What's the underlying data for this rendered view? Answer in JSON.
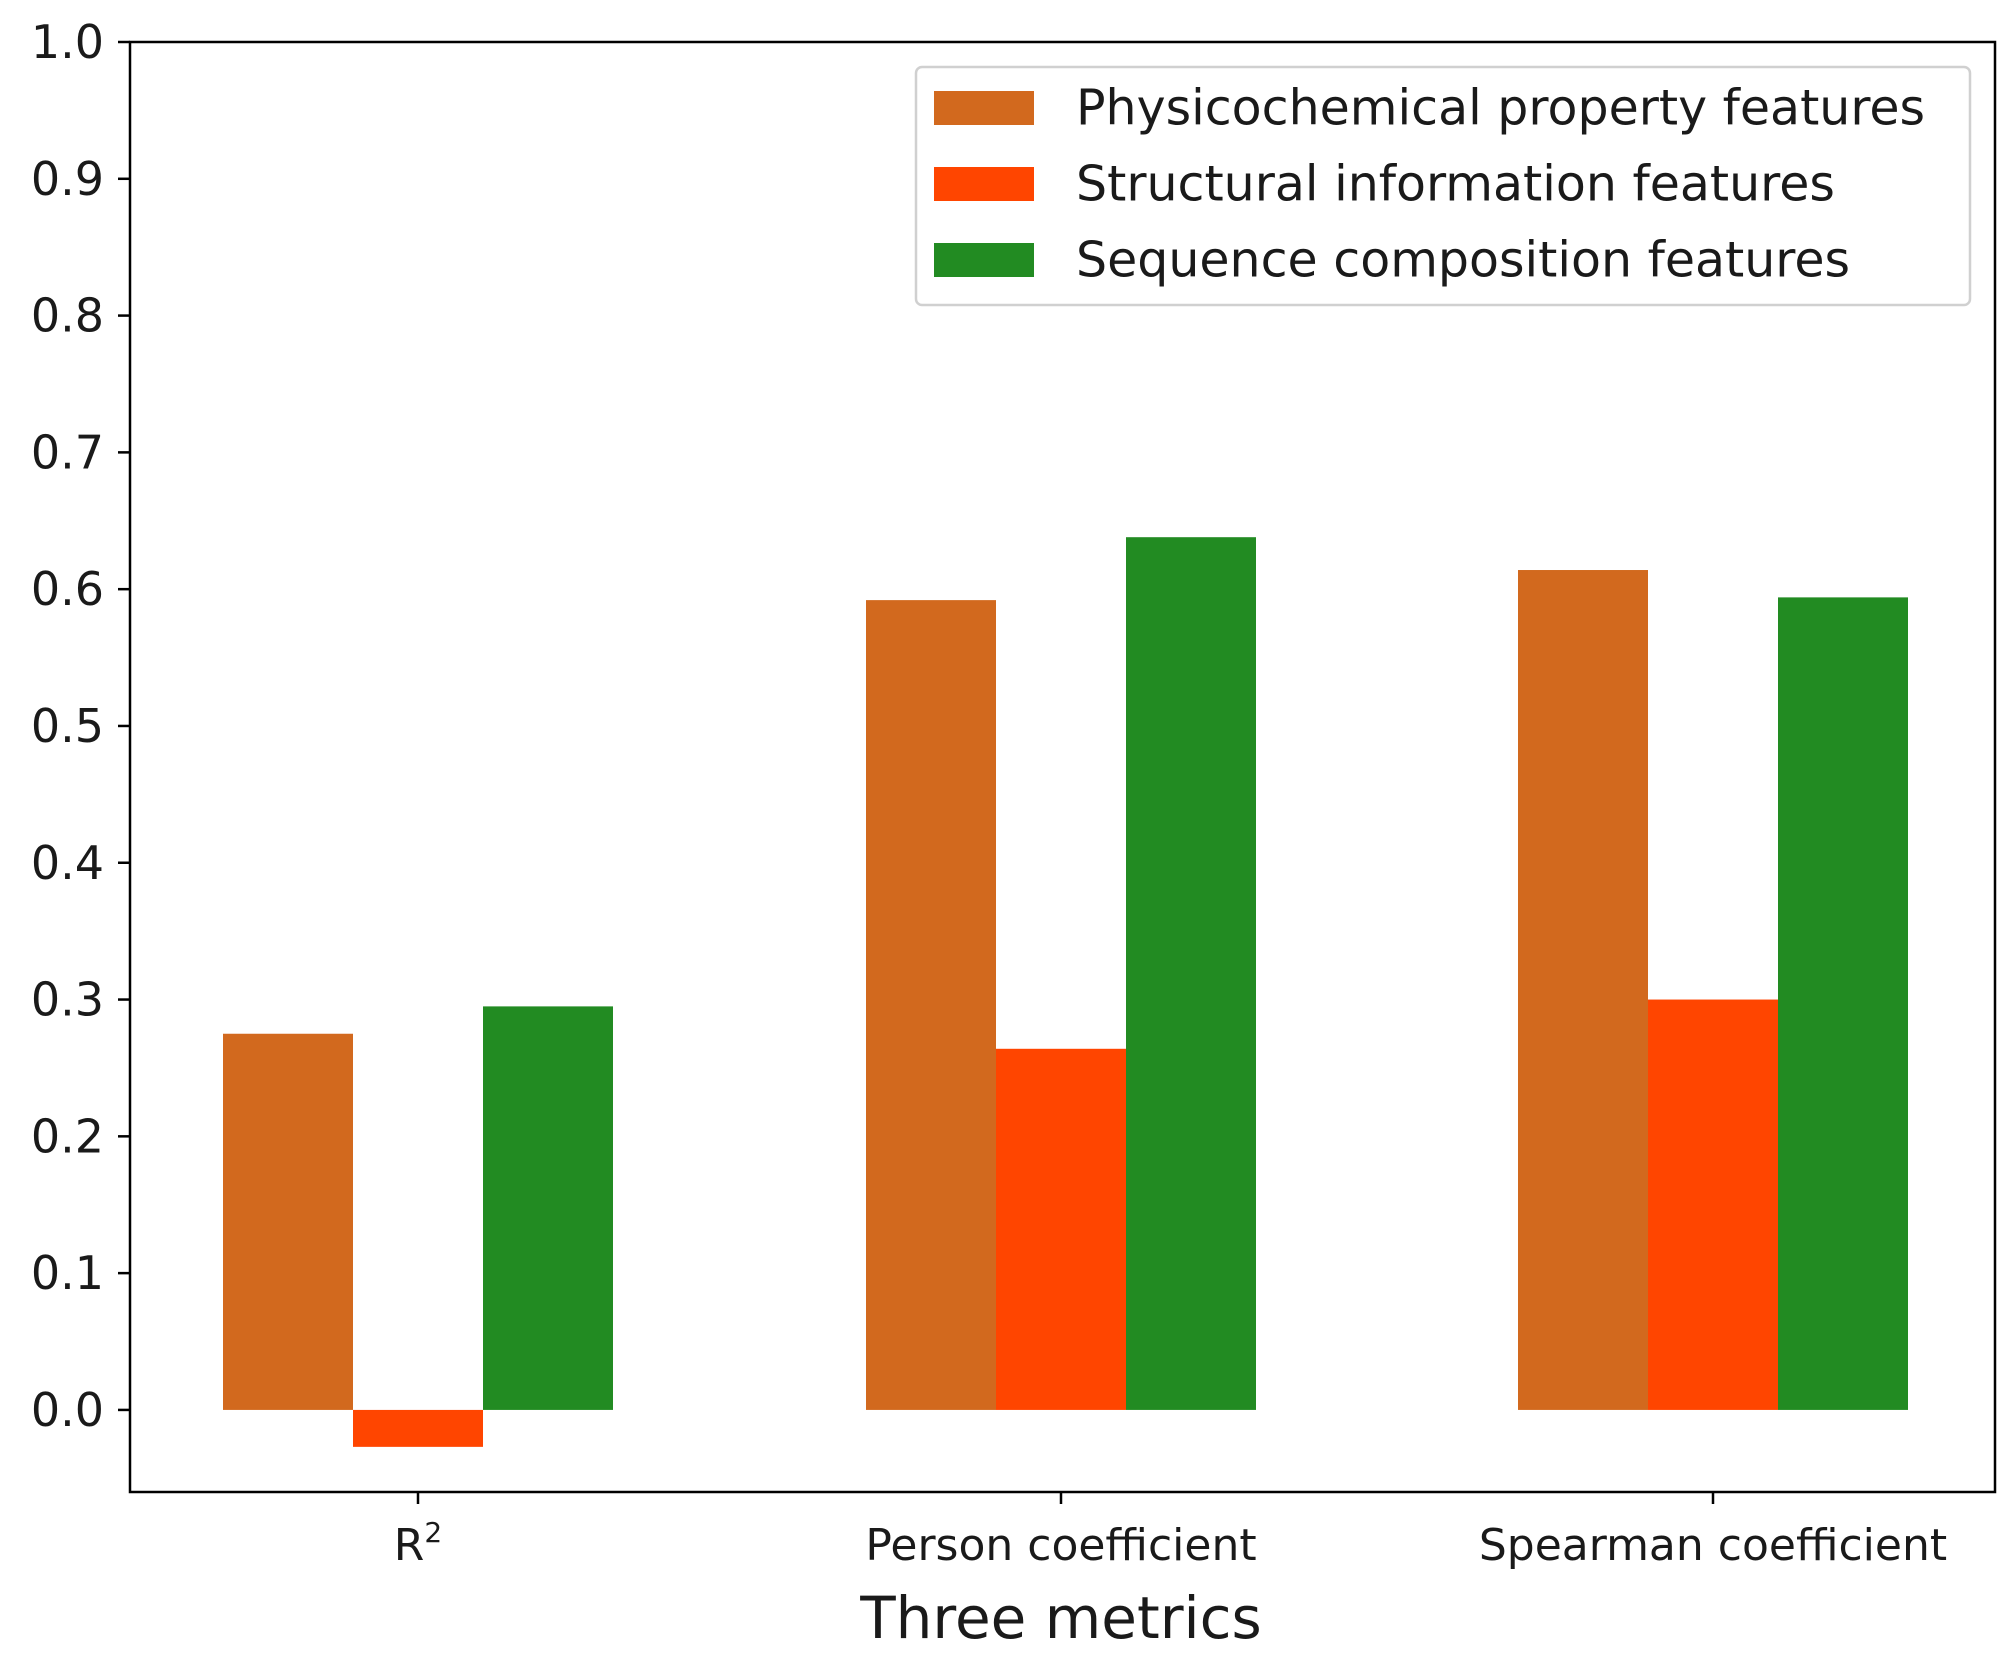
{
  "chart_data": {
    "type": "bar",
    "title": "",
    "xlabel": "Three metrics",
    "ylabel": "",
    "categories": [
      "R",
      "Person coefficient",
      "Spearman coefficient"
    ],
    "category_superscripts": [
      "2",
      "",
      ""
    ],
    "ylim": [
      -0.06,
      1.0
    ],
    "yticks": [
      0.0,
      0.1,
      0.2,
      0.3,
      0.4,
      0.5,
      0.6,
      0.7,
      0.8,
      0.9,
      1.0
    ],
    "ytick_labels": [
      "0.0",
      "0.1",
      "0.2",
      "0.3",
      "0.4",
      "0.5",
      "0.6",
      "0.7",
      "0.8",
      "0.9",
      "1.0"
    ],
    "grid": false,
    "legend_position": "top-right",
    "series": [
      {
        "name": "Physicochemical property features",
        "color": "#D2691E",
        "values": [
          0.275,
          0.592,
          0.614
        ]
      },
      {
        "name": "Structural information features",
        "color": "#FF4500",
        "values": [
          -0.027,
          0.264,
          0.3
        ]
      },
      {
        "name": "Sequence composition features",
        "color": "#228B22",
        "values": [
          0.295,
          0.638,
          0.594
        ]
      }
    ]
  }
}
